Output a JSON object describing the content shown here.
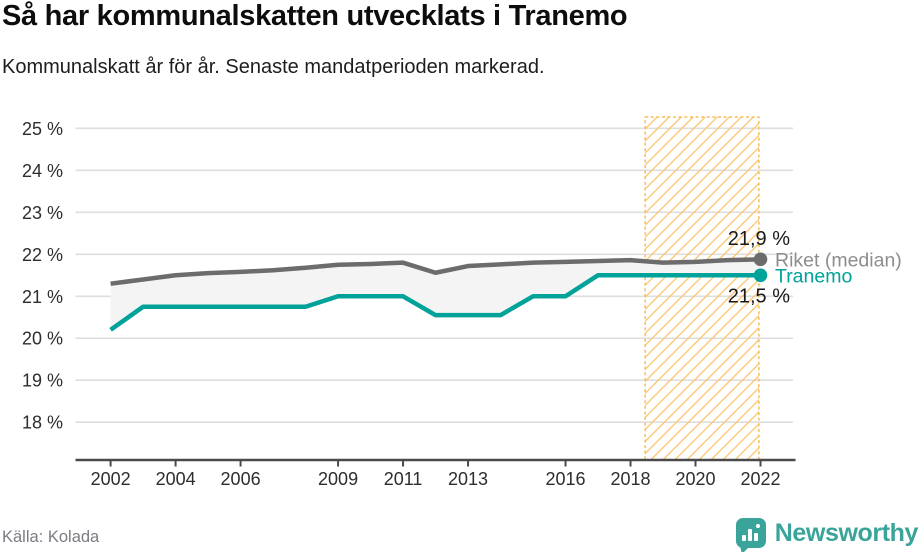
{
  "header": {
    "title": "Så har kommunalskatten utvecklats i Tranemo",
    "subtitle": "Kommunalskatt år för år. Senaste mandatperioden markerad."
  },
  "chart_data": {
    "type": "line",
    "x": [
      2002,
      2003,
      2004,
      2005,
      2006,
      2007,
      2008,
      2009,
      2010,
      2011,
      2012,
      2013,
      2014,
      2015,
      2016,
      2017,
      2018,
      2019,
      2020,
      2021,
      2022
    ],
    "series": [
      {
        "name": "Riket (median)",
        "color": "#6c6c6c",
        "label_color": "#8d8d8d",
        "end_label": "21,9 %",
        "values": [
          21.3,
          21.4,
          21.5,
          21.55,
          21.58,
          21.62,
          21.68,
          21.75,
          21.77,
          21.8,
          21.56,
          21.72,
          21.76,
          21.8,
          21.82,
          21.84,
          21.86,
          21.8,
          21.82,
          21.86,
          21.88
        ]
      },
      {
        "name": "Tranemo",
        "color": "#00a299",
        "label_color": "#00a299",
        "end_label": "21,5 %",
        "values": [
          20.2,
          20.75,
          20.75,
          20.75,
          20.75,
          20.75,
          20.75,
          21.0,
          21.0,
          21.0,
          20.55,
          20.55,
          20.55,
          21.0,
          21.0,
          21.5,
          21.5,
          21.5,
          21.5,
          21.5,
          21.5
        ]
      }
    ],
    "fill_between_color": "#f4f4f4",
    "highlight_region": {
      "from": 2018.45,
      "to": 2021.95,
      "style": "hatched",
      "stripe_color": "#fbc46b",
      "border_color": "#f7bd58"
    },
    "x_ticks": [
      {
        "v": 2002,
        "label": "2002"
      },
      {
        "v": 2004,
        "label": "2004"
      },
      {
        "v": 2006,
        "label": "2006"
      },
      {
        "v": 2009,
        "label": "2009"
      },
      {
        "v": 2011,
        "label": "2011"
      },
      {
        "v": 2013,
        "label": "2013"
      },
      {
        "v": 2016,
        "label": "2016"
      },
      {
        "v": 2018,
        "label": "2018"
      },
      {
        "v": 2020,
        "label": "2020"
      },
      {
        "v": 2022,
        "label": "2022"
      }
    ],
    "y_ticks": [
      {
        "v": 18,
        "label": "18 %"
      },
      {
        "v": 19,
        "label": "19 %"
      },
      {
        "v": 20,
        "label": "20 %"
      },
      {
        "v": 21,
        "label": "21 %"
      },
      {
        "v": 22,
        "label": "22 %"
      },
      {
        "v": 23,
        "label": "23 %"
      },
      {
        "v": 24,
        "label": "24 %"
      },
      {
        "v": 25,
        "label": "25 %"
      }
    ],
    "xlim": [
      2000.92,
      2023.0
    ],
    "ylim": [
      17.1,
      25.27
    ],
    "grid": "horizontal",
    "grid_color": "#dedede",
    "axis_color": "#4a4a4a",
    "tick_label_color": "#2d2d2d",
    "value_label_color": "#1a1a1a"
  },
  "footer": {
    "source": "Källa: Kolada",
    "brand": "Newsworthy",
    "brand_color": "#3aa49b"
  }
}
